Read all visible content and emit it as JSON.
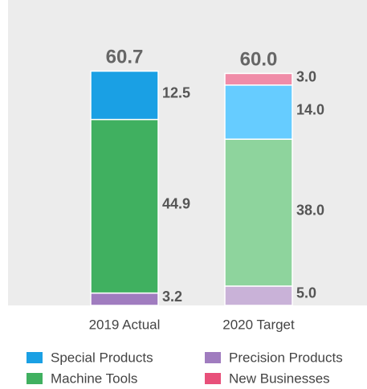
{
  "chart_data": {
    "type": "stacked-bar",
    "categories": [
      "2019 Actual",
      "2020 Target"
    ],
    "totals": [
      60.7,
      60.0
    ],
    "total_labels": [
      "60.7",
      "60.0"
    ],
    "series": [
      {
        "name": "Precision Products",
        "color": "#a07cbf",
        "colors": [
          "#a07cbf",
          "#c9b2d8"
        ],
        "values": [
          3.2,
          5.0
        ],
        "value_labels": [
          "3.2",
          "5.0"
        ]
      },
      {
        "name": "Machine Tools",
        "color": "#40b060",
        "colors": [
          "#40b060",
          "#8ed49d"
        ],
        "values": [
          44.9,
          38.0
        ],
        "value_labels": [
          "44.9",
          "38.0"
        ]
      },
      {
        "name": "Special Products",
        "color": "#1aa0e4",
        "colors": [
          "#1aa0e4",
          "#66ccff"
        ],
        "values": [
          12.5,
          14.0
        ],
        "value_labels": [
          "12.5",
          "14.0"
        ]
      },
      {
        "name": "New Businesses",
        "color": "#e8507a",
        "colors": [
          "#e8507a",
          "#f08ca8"
        ],
        "values": [
          null,
          3.0
        ],
        "value_labels": [
          null,
          "3.0"
        ]
      }
    ],
    "legend_order": [
      2,
      0,
      1,
      3
    ]
  }
}
